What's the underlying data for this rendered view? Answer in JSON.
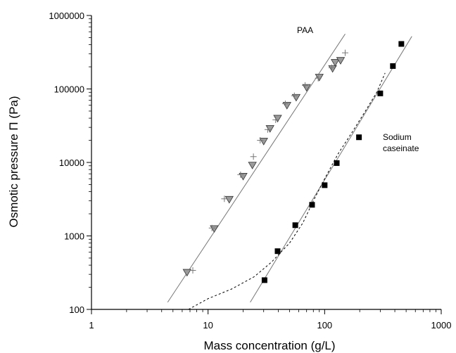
{
  "chart_data": {
    "type": "scatter",
    "xlabel": "Mass concentration (g/L)",
    "ylabel": "Osmotic pressure Π (Pa)",
    "x_scale": "log",
    "y_scale": "log",
    "xlim": [
      1,
      1000
    ],
    "ylim": [
      100,
      1000000
    ],
    "x_ticks": [
      1,
      10,
      100,
      1000
    ],
    "y_ticks": [
      100,
      1000,
      10000,
      100000,
      1000000
    ],
    "grid": false,
    "annotations": [
      {
        "name": "paa-label",
        "lines": [
          "PAA"
        ]
      },
      {
        "name": "caseinate-label",
        "lines": [
          "Sodium",
          "caseinate"
        ]
      }
    ],
    "series": [
      {
        "kind": "triangle-down",
        "color": "#9a9a9a",
        "points": [
          [
            6.6,
            320
          ],
          [
            11.3,
            1260
          ],
          [
            15.2,
            3150
          ],
          [
            20,
            6500
          ],
          [
            24,
            9200
          ],
          [
            30,
            19500
          ],
          [
            34,
            29000
          ],
          [
            39.5,
            40000
          ],
          [
            47.5,
            60000
          ],
          [
            57,
            77000
          ],
          [
            70,
            105000
          ],
          [
            90,
            145000
          ],
          [
            117,
            190000
          ],
          [
            123,
            230000
          ],
          [
            137,
            245000
          ]
        ]
      },
      {
        "kind": "plus",
        "color": "#777777",
        "points": [
          [
            7.4,
            340
          ],
          [
            10.8,
            1280
          ],
          [
            13.8,
            3200
          ],
          [
            19,
            6800
          ],
          [
            24.5,
            12000
          ],
          [
            28,
            20000
          ],
          [
            32.5,
            28000
          ],
          [
            38,
            38000
          ],
          [
            46,
            63000
          ],
          [
            55,
            81000
          ],
          [
            68,
            112000
          ],
          [
            88,
            140000
          ],
          [
            115,
            195000
          ],
          [
            150,
            310000
          ]
        ]
      },
      {
        "kind": "square",
        "color": "#000000",
        "points": [
          [
            30.5,
            250
          ],
          [
            39.5,
            620
          ],
          [
            56,
            1400
          ],
          [
            78,
            2650
          ],
          [
            100,
            4900
          ],
          [
            127,
            9800
          ],
          [
            197,
            22000
          ],
          [
            300,
            87000
          ],
          [
            385,
            205000
          ],
          [
            455,
            410000
          ]
        ]
      },
      {
        "kind": "solid-line",
        "color": "#777777",
        "points": [
          [
            4.5,
            125
          ],
          [
            150,
            560000
          ]
        ]
      },
      {
        "kind": "solid-line",
        "color": "#777777",
        "points": [
          [
            23,
            125
          ],
          [
            560,
            520000
          ]
        ]
      },
      {
        "kind": "dashed-line",
        "color": "#000000",
        "points": [
          [
            6.8,
            100
          ],
          [
            10,
            140
          ],
          [
            16,
            190
          ],
          [
            25,
            280
          ],
          [
            35,
            440
          ],
          [
            50,
            800
          ],
          [
            65,
            1500
          ],
          [
            80,
            3000
          ],
          [
            100,
            6000
          ],
          [
            130,
            13000
          ],
          [
            170,
            25000
          ],
          [
            220,
            48000
          ],
          [
            280,
            90000
          ],
          [
            330,
            165000
          ]
        ]
      }
    ]
  }
}
